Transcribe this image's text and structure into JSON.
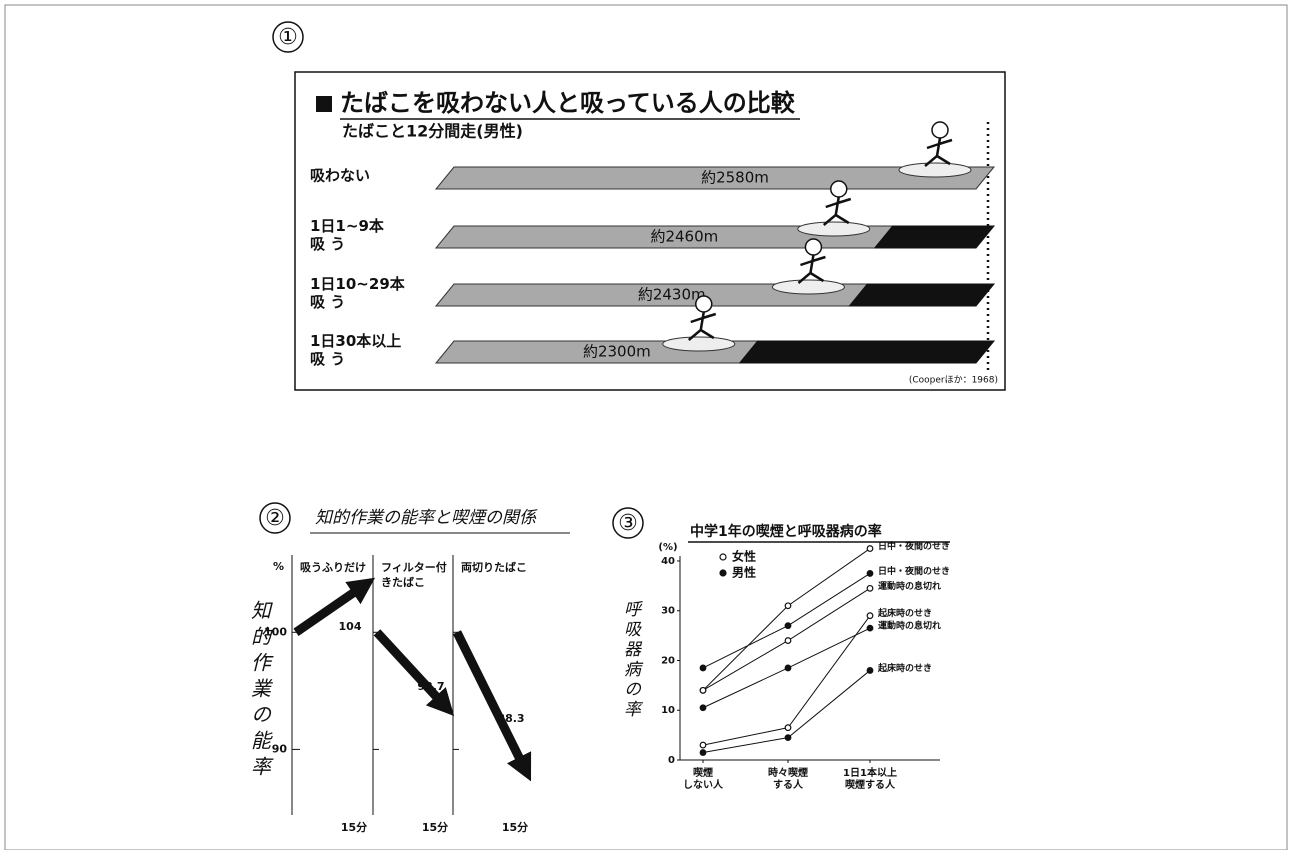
{
  "chart_data": [
    {
      "type": "track",
      "number": "①",
      "title": "たばこを吸わない人と吸っている人の比較",
      "subtitle": "たばこと12分間走(男性)",
      "categories": [
        "吸わない",
        "1日1~9本\n吸 う",
        "1日10~29本\n吸 う",
        "1日30本以上\n吸 う"
      ],
      "values": [
        2580,
        2460,
        2430,
        2300
      ],
      "value_labels": [
        "約2580m",
        "約2460m",
        "約2430m",
        "約2300m"
      ],
      "xlim": [
        1940,
        2580
      ],
      "source": "(Cooperほか：1968)",
      "color": "#a9a9a9",
      "deficit_color": "#111111"
    },
    {
      "type": "arrow_panels",
      "number": "②",
      "title": "知的作業の能率と喫煙の関係",
      "y_label": "知的作業の能率",
      "y_unit": "%",
      "ylim": [
        84.4,
        106.6
      ],
      "yticks": [
        90,
        100
      ],
      "panels": [
        {
          "name": "吸うふりだけ",
          "time": "15分",
          "start": 100,
          "end": 104
        },
        {
          "name": "フィルター付きたばこ",
          "time": "15分",
          "start": 100,
          "end": 93.7
        },
        {
          "name": "両切りたばこ",
          "time": "15分",
          "start": 100,
          "end": 88.3
        }
      ],
      "color": "#111111"
    },
    {
      "type": "line",
      "number": "③",
      "title": "中学1年の喫煙と呼吸器病の率",
      "y_label": "呼吸器病の率",
      "y_unit": "(%)",
      "categories": [
        "喫煙\nしない人",
        "時々喫煙\nする人",
        "1日1本以上\n喫煙する人"
      ],
      "ylim": [
        0,
        41
      ],
      "yticks": [
        0,
        10,
        20,
        30,
        40
      ],
      "color": "#111111",
      "groups": [
        {
          "name": "女性",
          "marker": "open",
          "series": [
            {
              "name": "日中・夜間のせき",
              "values": [
                14,
                31,
                42.5
              ]
            },
            {
              "name": "運動時の息切れ",
              "values": [
                14,
                24,
                34.5
              ]
            },
            {
              "name": "起床時のせき",
              "values": [
                3,
                6.5,
                29
              ]
            }
          ]
        },
        {
          "name": "男性",
          "marker": "filled",
          "series": [
            {
              "name": "日中・夜間のせき",
              "values": [
                18.5,
                27,
                37.5
              ]
            },
            {
              "name": "運動時の息切れ",
              "values": [
                10.5,
                18.5,
                26.5
              ]
            },
            {
              "name": "起床時のせき",
              "values": [
                1.5,
                4.5,
                18
              ]
            }
          ]
        }
      ]
    }
  ]
}
